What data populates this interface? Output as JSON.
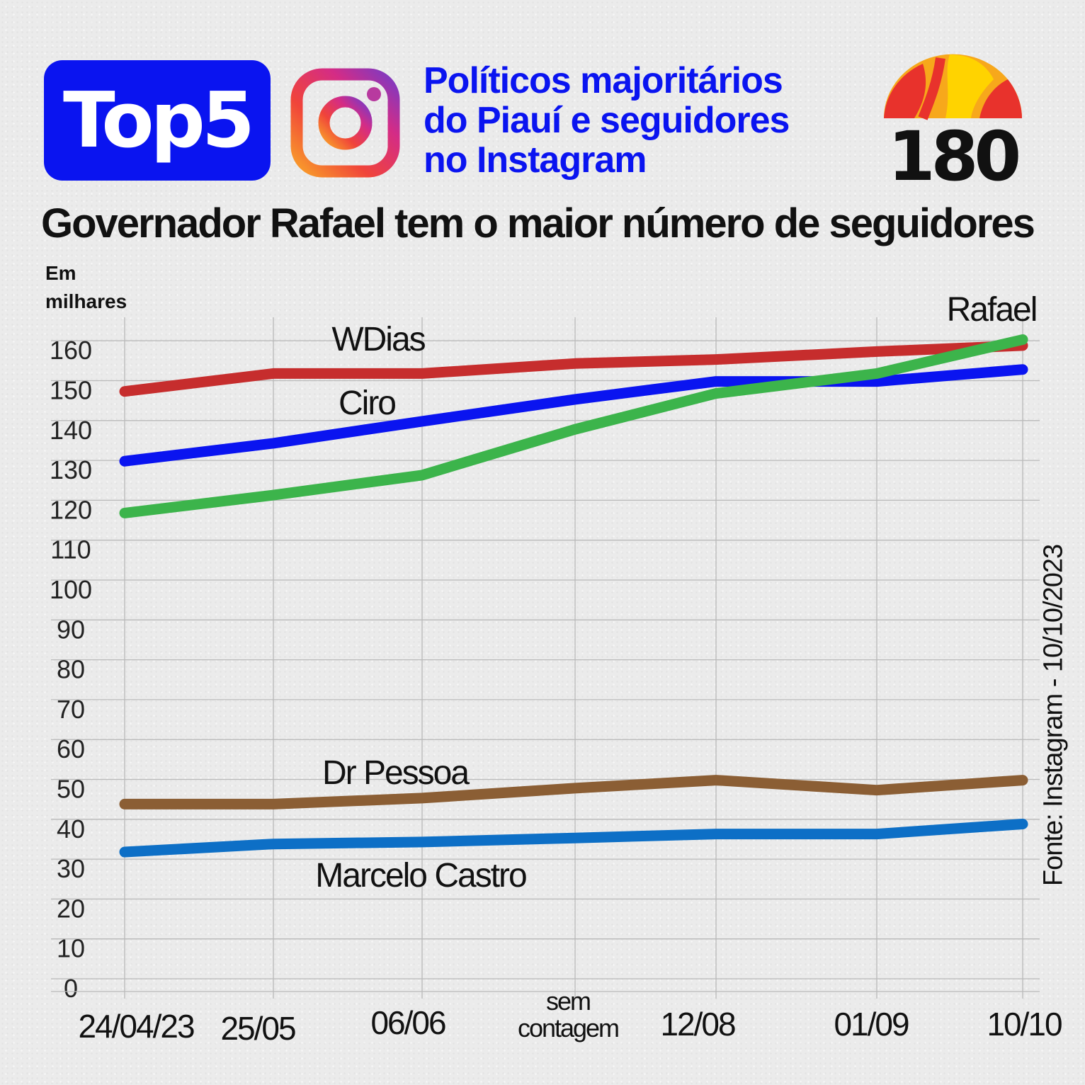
{
  "header": {
    "badge": "Top5",
    "headline_lines": [
      "Políticos majoritários",
      "do Piauí e seguidores",
      "no Instagram"
    ],
    "logo_text": "180",
    "subtitle": "Governador Rafael tem o maior número de seguidores",
    "unit_lines": [
      "Em",
      "milhares"
    ],
    "source": "Fonte: Instagram - 10/10/2023"
  },
  "icons": {
    "instagram": "instagram-icon",
    "logo": "180-logo"
  },
  "colors": {
    "badge": "#0a14f0",
    "headline": "#0a14f0"
  },
  "chart_data": {
    "type": "line",
    "categories": [
      "24/04/23",
      "25/05",
      "06/06",
      "sem contagem",
      "12/08",
      "01/09",
      "10/10"
    ],
    "category_positions": [
      0,
      1,
      2,
      3,
      4,
      5,
      6
    ],
    "ylim": [
      0,
      160
    ],
    "yticks": [
      0,
      10,
      20,
      30,
      40,
      50,
      60,
      70,
      80,
      90,
      100,
      110,
      120,
      130,
      140,
      150,
      160
    ],
    "ylabel": "Em milhares",
    "grid": true,
    "series": [
      {
        "name": "WDias",
        "color": "#c62d2d",
        "label_at": 2,
        "values": [
          150.5,
          155,
          155,
          157.5,
          158.5,
          160.5,
          162
        ]
      },
      {
        "name": "Ciro",
        "color": "#0a14f0",
        "label_at": 2,
        "values": [
          133,
          137.5,
          143,
          148.5,
          153,
          153,
          156
        ]
      },
      {
        "name": "Rafael",
        "color": "#3cb44b",
        "label_at": 6,
        "values": [
          120,
          124.5,
          129.5,
          141,
          150,
          155,
          163.5
        ]
      },
      {
        "name": "Dr Pessoa",
        "color": "#8b5e34",
        "label_at": 2,
        "values": [
          47,
          47,
          48.5,
          51,
          53,
          50.5,
          53
        ]
      },
      {
        "name": "Marcelo Castro",
        "color": "#0d6fc6",
        "label_at": 2,
        "values": [
          35,
          37,
          37.5,
          38.5,
          39.5,
          39.5,
          42
        ]
      }
    ]
  }
}
